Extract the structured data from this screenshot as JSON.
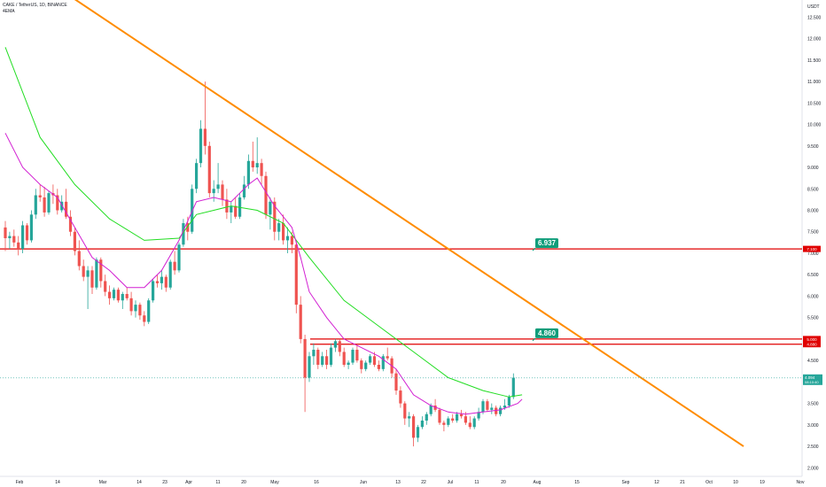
{
  "header": {
    "symbol_line": "CAKE / TetherUS, 1D, BINANCE",
    "indicator": "4EMA"
  },
  "axis": {
    "currency": "USDT",
    "price_ticks": [
      "12.500",
      "12.000",
      "11.500",
      "11.000",
      "10.500",
      "10.000",
      "9.500",
      "9.000",
      "8.500",
      "8.000",
      "7.500",
      "7.000",
      "6.500",
      "6.000",
      "5.500",
      "5.000",
      "4.500",
      "4.000",
      "3.500",
      "3.000",
      "2.500",
      "2.000"
    ],
    "time_ticks": [
      "Feb",
      "14",
      "Mar",
      "14",
      "23",
      "Apr",
      "11",
      "20",
      "May",
      "16",
      "Jun",
      "13",
      "22",
      "Jul",
      "11",
      "20",
      "Aug",
      "15",
      "Sep",
      "12",
      "21",
      "Oct",
      "10",
      "19",
      "Nov"
    ]
  },
  "levels": [
    {
      "price": 7.1,
      "tag": "7.100",
      "label": "6.937",
      "color": "#e00000"
    },
    {
      "price": 5.0,
      "tag": "5.000",
      "label": "4.860",
      "color": "#e00000"
    },
    {
      "price": 4.88,
      "tag": "4.880",
      "color": "#e00000"
    }
  ],
  "current": {
    "price": "4.094",
    "countdown": "08:10:40",
    "color": "#26a69a"
  },
  "colors": {
    "up": "#26a69a",
    "down": "#ef5350",
    "trendline": "#ff8c00",
    "ema_fast": "#d21fd2",
    "ema_slow": "#22dd22"
  },
  "chart_data": {
    "type": "candlestick",
    "title": "CAKE / TetherUS, 1D, BINANCE",
    "y_range": [
      1.8,
      12.9
    ],
    "levels": [
      7.1,
      5.0,
      4.88
    ],
    "trendline": [
      [
        0,
        14.0
      ],
      [
        170,
        2.5
      ]
    ],
    "candles": [
      [
        7.6,
        7.75,
        7.05,
        7.35
      ],
      [
        7.35,
        7.5,
        7.1,
        7.4
      ],
      [
        7.4,
        7.55,
        7.15,
        7.25
      ],
      [
        7.25,
        7.4,
        6.95,
        7.1
      ],
      [
        7.1,
        7.75,
        7.0,
        7.65
      ],
      [
        7.65,
        7.7,
        7.2,
        7.3
      ],
      [
        7.3,
        8.0,
        7.25,
        7.9
      ],
      [
        7.9,
        8.5,
        7.8,
        8.35
      ],
      [
        8.35,
        8.6,
        8.2,
        8.3
      ],
      [
        8.3,
        8.55,
        7.85,
        7.95
      ],
      [
        7.95,
        8.45,
        7.9,
        8.4
      ],
      [
        8.4,
        8.6,
        8.15,
        8.35
      ],
      [
        8.35,
        8.5,
        7.9,
        8.0
      ],
      [
        8.0,
        8.35,
        7.95,
        8.2
      ],
      [
        8.2,
        8.5,
        7.8,
        7.85
      ],
      [
        7.85,
        8.0,
        7.4,
        7.5
      ],
      [
        7.5,
        7.6,
        6.95,
        7.05
      ],
      [
        7.05,
        7.3,
        6.6,
        6.7
      ],
      [
        6.7,
        6.85,
        6.35,
        6.45
      ],
      [
        6.45,
        6.7,
        5.7,
        6.6
      ],
      [
        6.6,
        6.7,
        6.05,
        6.2
      ],
      [
        6.2,
        6.9,
        6.15,
        6.85
      ],
      [
        6.85,
        6.9,
        6.2,
        6.35
      ],
      [
        6.35,
        6.5,
        6.0,
        6.1
      ],
      [
        6.1,
        6.25,
        5.8,
        5.95
      ],
      [
        5.95,
        6.2,
        5.9,
        6.15
      ],
      [
        6.15,
        6.2,
        5.85,
        5.9
      ],
      [
        5.9,
        6.1,
        5.7,
        6.05
      ],
      [
        6.05,
        6.2,
        5.9,
        5.95
      ],
      [
        5.95,
        6.1,
        5.55,
        5.65
      ],
      [
        5.65,
        5.9,
        5.5,
        5.8
      ],
      [
        5.8,
        5.85,
        5.45,
        5.55
      ],
      [
        5.55,
        5.65,
        5.3,
        5.4
      ],
      [
        5.4,
        5.95,
        5.35,
        5.9
      ],
      [
        5.9,
        6.4,
        5.85,
        6.35
      ],
      [
        6.35,
        6.5,
        6.2,
        6.3
      ],
      [
        6.3,
        6.6,
        6.15,
        6.45
      ],
      [
        6.45,
        6.5,
        6.1,
        6.2
      ],
      [
        6.2,
        6.85,
        6.15,
        6.8
      ],
      [
        6.8,
        7.05,
        6.5,
        6.6
      ],
      [
        6.6,
        7.25,
        6.55,
        7.2
      ],
      [
        7.2,
        7.8,
        7.15,
        7.7
      ],
      [
        7.7,
        7.85,
        7.3,
        7.5
      ],
      [
        7.5,
        8.6,
        7.45,
        8.5
      ],
      [
        8.5,
        9.2,
        8.4,
        9.1
      ],
      [
        9.1,
        10.1,
        9.0,
        9.9
      ],
      [
        9.9,
        11.0,
        9.3,
        9.5
      ],
      [
        9.5,
        9.6,
        8.3,
        8.4
      ],
      [
        8.4,
        8.7,
        8.2,
        8.5
      ],
      [
        8.5,
        9.1,
        8.4,
        8.6
      ],
      [
        8.6,
        8.7,
        8.1,
        8.25
      ],
      [
        8.25,
        8.5,
        7.8,
        7.95
      ],
      [
        7.95,
        8.2,
        7.7,
        8.1
      ],
      [
        8.1,
        8.3,
        7.8,
        7.85
      ],
      [
        7.85,
        8.4,
        7.8,
        8.3
      ],
      [
        8.3,
        8.8,
        8.25,
        8.6
      ],
      [
        8.6,
        9.3,
        8.5,
        9.15
      ],
      [
        9.15,
        9.6,
        8.9,
        9.0
      ],
      [
        9.0,
        9.7,
        8.85,
        9.1
      ],
      [
        9.1,
        9.2,
        8.6,
        8.8
      ],
      [
        8.8,
        8.9,
        7.8,
        7.9
      ],
      [
        7.9,
        8.3,
        7.55,
        8.2
      ],
      [
        8.2,
        8.3,
        7.3,
        7.5
      ],
      [
        7.5,
        7.8,
        7.3,
        7.7
      ],
      [
        7.7,
        7.9,
        7.2,
        7.3
      ],
      [
        7.3,
        7.6,
        7.0,
        7.4
      ],
      [
        7.4,
        7.5,
        7.0,
        7.2
      ],
      [
        7.2,
        7.3,
        5.6,
        5.8
      ],
      [
        5.8,
        6.0,
        4.9,
        5.0
      ],
      [
        5.0,
        5.1,
        3.3,
        4.1
      ],
      [
        4.1,
        4.7,
        4.0,
        4.6
      ],
      [
        4.6,
        4.9,
        4.4,
        4.75
      ],
      [
        4.75,
        4.8,
        4.3,
        4.4
      ],
      [
        4.4,
        4.7,
        4.35,
        4.6
      ],
      [
        4.6,
        4.75,
        4.3,
        4.4
      ],
      [
        4.4,
        4.9,
        4.35,
        4.8
      ],
      [
        4.8,
        5.0,
        4.7,
        4.95
      ],
      [
        4.95,
        5.0,
        4.6,
        4.7
      ],
      [
        4.7,
        4.8,
        4.35,
        4.4
      ],
      [
        4.4,
        4.5,
        4.3,
        4.45
      ],
      [
        4.45,
        4.8,
        4.4,
        4.75
      ],
      [
        4.75,
        4.85,
        4.45,
        4.5
      ],
      [
        4.5,
        4.55,
        4.2,
        4.3
      ],
      [
        4.3,
        4.5,
        4.25,
        4.45
      ],
      [
        4.45,
        4.65,
        4.4,
        4.6
      ],
      [
        4.6,
        4.7,
        4.35,
        4.4
      ],
      [
        4.4,
        4.5,
        4.25,
        4.3
      ],
      [
        4.3,
        4.65,
        4.25,
        4.6
      ],
      [
        4.6,
        4.8,
        4.5,
        4.55
      ],
      [
        4.55,
        4.6,
        4.1,
        4.2
      ],
      [
        4.2,
        4.3,
        3.7,
        3.8
      ],
      [
        3.8,
        3.9,
        3.4,
        3.5
      ],
      [
        3.5,
        3.55,
        3.0,
        3.15
      ],
      [
        3.15,
        3.3,
        2.95,
        3.2
      ],
      [
        3.2,
        3.25,
        2.5,
        2.7
      ],
      [
        2.7,
        3.0,
        2.6,
        2.95
      ],
      [
        2.95,
        3.2,
        2.9,
        3.1
      ],
      [
        3.1,
        3.3,
        3.0,
        3.25
      ],
      [
        3.25,
        3.5,
        3.2,
        3.45
      ],
      [
        3.45,
        3.6,
        3.3,
        3.35
      ],
      [
        3.35,
        3.4,
        3.0,
        3.05
      ],
      [
        3.05,
        3.1,
        2.85,
        3.0
      ],
      [
        3.0,
        3.2,
        2.95,
        3.15
      ],
      [
        3.15,
        3.25,
        3.05,
        3.1
      ],
      [
        3.1,
        3.3,
        3.05,
        3.25
      ],
      [
        3.25,
        3.35,
        3.15,
        3.2
      ],
      [
        3.2,
        3.3,
        3.0,
        3.05
      ],
      [
        3.05,
        3.2,
        2.9,
        2.95
      ],
      [
        2.95,
        3.2,
        2.9,
        3.15
      ],
      [
        3.15,
        3.4,
        3.1,
        3.3
      ],
      [
        3.3,
        3.6,
        3.25,
        3.55
      ],
      [
        3.55,
        3.6,
        3.3,
        3.35
      ],
      [
        3.35,
        3.5,
        3.25,
        3.4
      ],
      [
        3.4,
        3.45,
        3.2,
        3.25
      ],
      [
        3.25,
        3.45,
        3.2,
        3.4
      ],
      [
        3.4,
        3.6,
        3.35,
        3.45
      ],
      [
        3.45,
        3.7,
        3.4,
        3.65
      ],
      [
        3.65,
        4.2,
        3.6,
        4.1
      ]
    ],
    "ema_fast": [
      [
        0,
        9.8
      ],
      [
        4,
        9.0
      ],
      [
        8,
        8.6
      ],
      [
        12,
        8.3
      ],
      [
        16,
        7.6
      ],
      [
        20,
        6.9
      ],
      [
        24,
        6.6
      ],
      [
        28,
        6.2
      ],
      [
        32,
        6.2
      ],
      [
        36,
        6.6
      ],
      [
        40,
        7.3
      ],
      [
        44,
        8.2
      ],
      [
        48,
        8.3
      ],
      [
        52,
        8.2
      ],
      [
        56,
        8.6
      ],
      [
        58,
        8.75
      ],
      [
        62,
        8.1
      ],
      [
        66,
        7.6
      ],
      [
        68,
        6.9
      ],
      [
        70,
        6.1
      ],
      [
        74,
        5.5
      ],
      [
        78,
        5.0
      ],
      [
        82,
        4.8
      ],
      [
        86,
        4.6
      ],
      [
        90,
        4.3
      ],
      [
        94,
        3.7
      ],
      [
        98,
        3.45
      ],
      [
        102,
        3.3
      ],
      [
        106,
        3.25
      ],
      [
        110,
        3.3
      ],
      [
        114,
        3.35
      ],
      [
        118,
        3.5
      ],
      [
        119,
        3.6
      ]
    ],
    "ema_slow": [
      [
        0,
        11.8
      ],
      [
        8,
        9.7
      ],
      [
        16,
        8.6
      ],
      [
        24,
        7.8
      ],
      [
        32,
        7.3
      ],
      [
        40,
        7.35
      ],
      [
        44,
        7.9
      ],
      [
        48,
        8.0
      ],
      [
        52,
        8.1
      ],
      [
        58,
        8.0
      ],
      [
        64,
        7.7
      ],
      [
        70,
        6.9
      ],
      [
        78,
        5.9
      ],
      [
        86,
        5.3
      ],
      [
        94,
        4.7
      ],
      [
        102,
        4.1
      ],
      [
        110,
        3.8
      ],
      [
        116,
        3.65
      ],
      [
        119,
        3.7
      ]
    ]
  }
}
